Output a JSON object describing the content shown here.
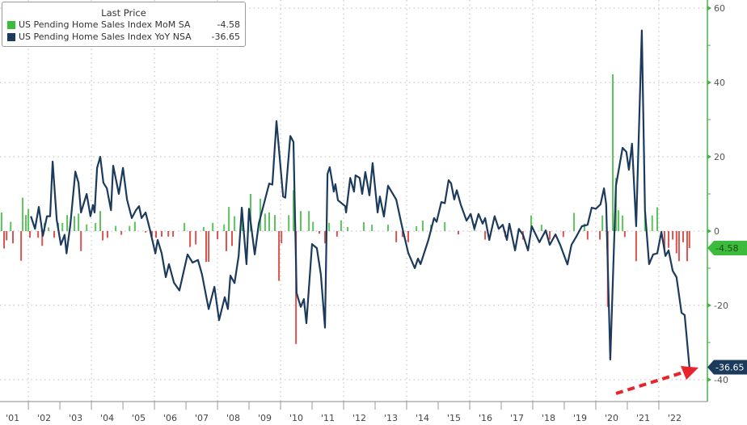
{
  "chart_data": {
    "type": "bar+line",
    "title": "",
    "legend": {
      "title": "Last Price",
      "placement": "top-left",
      "entries": [
        {
          "name": "US Pending Home Sales Index MoM SA",
          "last": "-4.58",
          "color": "#3dbb3d"
        },
        {
          "name": "US Pending Home Sales Index YoY NSA",
          "last": "-36.65",
          "color": "#1b3a5c"
        }
      ]
    },
    "xlim": [
      2001.1,
      2023.54
    ],
    "ylim": [
      -45.9,
      62.2
    ],
    "x_ticks": [
      "'01",
      "'02",
      "'03",
      "'04",
      "'05",
      "'06",
      "'07",
      "'08",
      "'09",
      "'10",
      "'11",
      "'12",
      "'13",
      "'14",
      "'15",
      "'16",
      "'17",
      "'18",
      "'19",
      "'20",
      "'21",
      "'22"
    ],
    "x_tick_years": [
      2001,
      2002,
      2003,
      2004,
      2005,
      2006,
      2007,
      2008,
      2009,
      2010,
      2011,
      2012,
      2013,
      2014,
      2015,
      2016,
      2017,
      2018,
      2019,
      2020,
      2021,
      2022
    ],
    "y_ticks": [
      60,
      40,
      20,
      0,
      -20,
      -40
    ],
    "y_tick_labels": [
      "60",
      "40",
      "20",
      "0",
      "-20",
      "-40"
    ],
    "grid": true,
    "colors": {
      "positive_bar": "#5cc45c",
      "negative_bar": "#d9534f",
      "line": "#1b3a5c",
      "axis": "#4caf50",
      "arrow": "#e8232a"
    },
    "callouts": [
      {
        "series": "mom",
        "value": -4.58,
        "label": "-4.58"
      },
      {
        "series": "yoy",
        "value": -36.65,
        "label": "-36.65"
      }
    ],
    "series": [
      {
        "name": "US Pending Home Sales Index MoM SA",
        "type": "bar",
        "points": [
          [
            2001.15,
            5
          ],
          [
            2001.23,
            -4.7
          ],
          [
            2001.31,
            -2.5
          ],
          [
            2001.44,
            2.5
          ],
          [
            2001.51,
            -3.3
          ],
          [
            2001.77,
            -8
          ],
          [
            2001.82,
            9
          ],
          [
            2001.92,
            4.3
          ],
          [
            2002.0,
            6
          ],
          [
            2002.05,
            -1.8
          ],
          [
            2002.31,
            -1.8
          ],
          [
            2002.44,
            -4
          ],
          [
            2002.51,
            2.2
          ],
          [
            2002.64,
            1
          ],
          [
            2002.82,
            -1.8
          ],
          [
            2002.95,
            2.2
          ],
          [
            2003.08,
            2.2
          ],
          [
            2003.23,
            4.3
          ],
          [
            2003.46,
            4
          ],
          [
            2003.59,
            4.7
          ],
          [
            2003.67,
            -5.4
          ],
          [
            2003.85,
            1.8
          ],
          [
            2004.13,
            2.2
          ],
          [
            2004.28,
            5.4
          ],
          [
            2004.36,
            -2.5
          ],
          [
            2004.51,
            -1.8
          ],
          [
            2004.77,
            1.4
          ],
          [
            2004.95,
            -1
          ],
          [
            2005.21,
            1.4
          ],
          [
            2005.38,
            2.5
          ],
          [
            2005.72,
            -0.4
          ],
          [
            2005.92,
            -1.5
          ],
          [
            2006.05,
            -1.8
          ],
          [
            2006.23,
            -1.5
          ],
          [
            2006.44,
            -1.5
          ],
          [
            2006.59,
            -1.5
          ],
          [
            2006.95,
            2.2
          ],
          [
            2007.13,
            -4.3
          ],
          [
            2007.31,
            -3.6
          ],
          [
            2007.56,
            1.1
          ],
          [
            2007.64,
            -8.3
          ],
          [
            2007.72,
            -8.3
          ],
          [
            2007.85,
            2.2
          ],
          [
            2008.0,
            -2.2
          ],
          [
            2008.21,
            1.8
          ],
          [
            2008.28,
            -5.4
          ],
          [
            2008.36,
            6.5
          ],
          [
            2008.46,
            -4
          ],
          [
            2008.54,
            4
          ],
          [
            2008.79,
            4.7
          ],
          [
            2009.05,
            10
          ],
          [
            2009.36,
            8.7
          ],
          [
            2009.51,
            4.7
          ],
          [
            2009.64,
            5
          ],
          [
            2009.82,
            4.3
          ],
          [
            2009.95,
            -13.4
          ],
          [
            2010.03,
            -3.3
          ],
          [
            2010.26,
            4.3
          ],
          [
            2010.41,
            11
          ],
          [
            2010.49,
            -30.4
          ],
          [
            2010.64,
            5.4
          ],
          [
            2010.9,
            5.4
          ],
          [
            2011.03,
            2.5
          ],
          [
            2011.23,
            -0.7
          ],
          [
            2011.41,
            -3.3
          ],
          [
            2011.54,
            2.2
          ],
          [
            2011.79,
            -1.5
          ],
          [
            2011.92,
            2.9
          ],
          [
            2012.13,
            1.1
          ],
          [
            2012.64,
            2.4
          ],
          [
            2012.9,
            1.7
          ],
          [
            2013.41,
            1.7
          ],
          [
            2013.67,
            -3
          ],
          [
            2013.87,
            -1.6
          ],
          [
            2014.05,
            -3
          ],
          [
            2014.31,
            1.3
          ],
          [
            2014.51,
            2.8
          ],
          [
            2014.77,
            1.7
          ],
          [
            2015.21,
            2.4
          ],
          [
            2015.64,
            -0.9
          ],
          [
            2016.15,
            2
          ],
          [
            2016.49,
            -2.3
          ],
          [
            2017.13,
            -1.6
          ],
          [
            2017.69,
            -2.3
          ],
          [
            2017.95,
            4.2
          ],
          [
            2018.28,
            1.7
          ],
          [
            2018.54,
            -2.3
          ],
          [
            2018.97,
            -1.6
          ],
          [
            2019.31,
            4.9
          ],
          [
            2019.64,
            2
          ],
          [
            2019.74,
            -2.3
          ],
          [
            2020.13,
            -2.3
          ],
          [
            2020.21,
            4.2
          ],
          [
            2020.38,
            -20.4
          ],
          [
            2020.54,
            42.2
          ],
          [
            2020.64,
            14.3
          ],
          [
            2020.72,
            5.6
          ],
          [
            2020.85,
            4.2
          ],
          [
            2020.92,
            -1.6
          ],
          [
            2021.28,
            -8.1
          ],
          [
            2021.56,
            5.6
          ],
          [
            2021.79,
            4.2
          ],
          [
            2021.95,
            6.4
          ],
          [
            2022.18,
            -5.2
          ],
          [
            2022.31,
            -4.5
          ],
          [
            2022.44,
            -2.3
          ],
          [
            2022.56,
            -6
          ],
          [
            2022.64,
            -8.1
          ],
          [
            2022.77,
            -3
          ],
          [
            2022.9,
            -8.1
          ],
          [
            2022.97,
            -4.58
          ]
        ]
      },
      {
        "name": "US Pending Home Sales Index YoY NSA",
        "type": "line",
        "points": [
          [
            2002.08,
            4
          ],
          [
            2002.21,
            0.6
          ],
          [
            2002.33,
            6.5
          ],
          [
            2002.46,
            -1.3
          ],
          [
            2002.59,
            4
          ],
          [
            2002.69,
            4
          ],
          [
            2002.77,
            18.7
          ],
          [
            2002.9,
            3
          ],
          [
            2003.03,
            -3.7
          ],
          [
            2003.15,
            -1
          ],
          [
            2003.21,
            -6
          ],
          [
            2003.33,
            1.7
          ],
          [
            2003.49,
            16
          ],
          [
            2003.59,
            13
          ],
          [
            2003.67,
            5
          ],
          [
            2003.85,
            10
          ],
          [
            2003.97,
            4
          ],
          [
            2004.05,
            7
          ],
          [
            2004.1,
            5
          ],
          [
            2004.18,
            17
          ],
          [
            2004.28,
            20
          ],
          [
            2004.38,
            13
          ],
          [
            2004.49,
            11.5
          ],
          [
            2004.62,
            5.6
          ],
          [
            2004.69,
            17.6
          ],
          [
            2004.87,
            10
          ],
          [
            2005.0,
            17
          ],
          [
            2005.13,
            8.5
          ],
          [
            2005.28,
            3.5
          ],
          [
            2005.41,
            5.6
          ],
          [
            2005.51,
            6.7
          ],
          [
            2005.59,
            3.5
          ],
          [
            2005.72,
            5
          ],
          [
            2005.85,
            0.6
          ],
          [
            2006.03,
            -6
          ],
          [
            2006.1,
            -2.4
          ],
          [
            2006.23,
            -6
          ],
          [
            2006.36,
            -12.4
          ],
          [
            2006.46,
            -8.9
          ],
          [
            2006.62,
            -13.9
          ],
          [
            2006.79,
            -16
          ],
          [
            2007.05,
            -6.3
          ],
          [
            2007.21,
            -8.5
          ],
          [
            2007.38,
            -7.8
          ],
          [
            2007.51,
            -11.7
          ],
          [
            2007.72,
            -21
          ],
          [
            2007.9,
            -15
          ],
          [
            2008.05,
            -24
          ],
          [
            2008.23,
            -17.8
          ],
          [
            2008.33,
            -21
          ],
          [
            2008.41,
            -12
          ],
          [
            2008.54,
            -14
          ],
          [
            2008.67,
            -6.7
          ],
          [
            2008.77,
            6.3
          ],
          [
            2008.92,
            -8.9
          ],
          [
            2009.0,
            6
          ],
          [
            2009.18,
            -6.3
          ],
          [
            2009.31,
            2
          ],
          [
            2009.64,
            12.8
          ],
          [
            2009.74,
            12.5
          ],
          [
            2009.87,
            29.6
          ],
          [
            2010.08,
            9.3
          ],
          [
            2010.15,
            9
          ],
          [
            2010.31,
            25.6
          ],
          [
            2010.41,
            24
          ],
          [
            2010.51,
            -16.7
          ],
          [
            2010.64,
            -20.4
          ],
          [
            2010.74,
            -18.3
          ],
          [
            2010.82,
            -24.8
          ],
          [
            2011.0,
            -3.5
          ],
          [
            2011.15,
            -4.6
          ],
          [
            2011.28,
            -11.7
          ],
          [
            2011.41,
            -26
          ],
          [
            2011.49,
            15.4
          ],
          [
            2011.56,
            17.2
          ],
          [
            2011.69,
            10.6
          ],
          [
            2011.74,
            12.6
          ],
          [
            2011.82,
            8.3
          ],
          [
            2012.05,
            6.7
          ],
          [
            2012.08,
            5
          ],
          [
            2012.21,
            14.3
          ],
          [
            2012.33,
            10.6
          ],
          [
            2012.38,
            15
          ],
          [
            2012.51,
            14.3
          ],
          [
            2012.59,
            10
          ],
          [
            2012.69,
            15.9
          ],
          [
            2012.82,
            9.6
          ],
          [
            2012.92,
            18.3
          ],
          [
            2013.08,
            5
          ],
          [
            2013.15,
            9.3
          ],
          [
            2013.28,
            3.9
          ],
          [
            2013.41,
            12.2
          ],
          [
            2013.67,
            8.5
          ],
          [
            2013.85,
            1.3
          ],
          [
            2014.05,
            -5.9
          ],
          [
            2014.26,
            -10
          ],
          [
            2014.36,
            -7.4
          ],
          [
            2014.44,
            -8.9
          ],
          [
            2014.69,
            -2.4
          ],
          [
            2014.87,
            3.5
          ],
          [
            2014.95,
            2.5
          ],
          [
            2015.1,
            7.8
          ],
          [
            2015.21,
            7.5
          ],
          [
            2015.33,
            13.7
          ],
          [
            2015.41,
            12.8
          ],
          [
            2015.51,
            8.5
          ],
          [
            2015.59,
            11
          ],
          [
            2015.72,
            7
          ],
          [
            2015.9,
            2.8
          ],
          [
            2016.03,
            4.6
          ],
          [
            2016.15,
            0.6
          ],
          [
            2016.28,
            4.6
          ],
          [
            2016.41,
            2
          ],
          [
            2016.49,
            3.5
          ],
          [
            2016.62,
            -2.4
          ],
          [
            2016.79,
            4
          ],
          [
            2016.92,
            0.6
          ],
          [
            2017.05,
            1.7
          ],
          [
            2017.18,
            -2.4
          ],
          [
            2017.26,
            2
          ],
          [
            2017.44,
            -5.2
          ],
          [
            2017.56,
            0.6
          ],
          [
            2017.69,
            -1
          ],
          [
            2017.85,
            -5.2
          ],
          [
            2017.97,
            1.3
          ],
          [
            2018.21,
            -3
          ],
          [
            2018.41,
            0.2
          ],
          [
            2018.54,
            -3.7
          ],
          [
            2018.72,
            -0.9
          ],
          [
            2018.87,
            -3.7
          ],
          [
            2019.1,
            -9
          ],
          [
            2019.23,
            -3.7
          ],
          [
            2019.38,
            -1.5
          ],
          [
            2019.56,
            1.3
          ],
          [
            2019.74,
            1.7
          ],
          [
            2019.87,
            6.3
          ],
          [
            2020.0,
            6
          ],
          [
            2020.15,
            7.2
          ],
          [
            2020.26,
            11.5
          ],
          [
            2020.33,
            7.2
          ],
          [
            2020.46,
            -34.6
          ],
          [
            2020.64,
            12.2
          ],
          [
            2020.85,
            22.4
          ],
          [
            2020.97,
            21.3
          ],
          [
            2021.05,
            16.5
          ],
          [
            2021.15,
            23.5
          ],
          [
            2021.28,
            1.3
          ],
          [
            2021.46,
            54
          ],
          [
            2021.56,
            5.6
          ],
          [
            2021.69,
            -8.9
          ],
          [
            2021.82,
            -6.3
          ],
          [
            2021.95,
            -6
          ],
          [
            2022.08,
            -0.2
          ],
          [
            2022.21,
            -6.7
          ],
          [
            2022.31,
            -5.2
          ],
          [
            2022.44,
            -10.7
          ],
          [
            2022.56,
            -12.4
          ],
          [
            2022.72,
            -22
          ],
          [
            2022.82,
            -22.6
          ],
          [
            2022.97,
            -36.65
          ]
        ]
      }
    ]
  }
}
